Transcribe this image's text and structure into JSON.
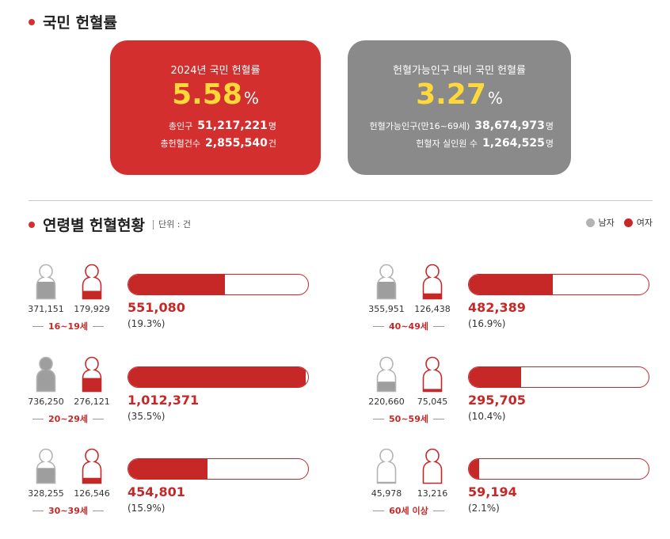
{
  "header": {
    "title": "국민 헌혈률"
  },
  "cards": [
    {
      "title": "2024년 국민 헌혈률",
      "rate": "5.58",
      "rate_unit": "%",
      "rows": [
        {
          "label": "총인구",
          "value": "51,217,221",
          "unit": "명"
        },
        {
          "label": "총헌혈건수",
          "value": "2,855,540",
          "unit": "건"
        }
      ],
      "color": "#d32f2f"
    },
    {
      "title": "헌혈가능인구 대비 국민 헌혈률",
      "rate": "3.27",
      "rate_unit": "%",
      "rows": [
        {
          "label": "헌혈가능인구(만16~69세)",
          "value": "38,674,973",
          "unit": "명"
        },
        {
          "label": "헌혈자 실인원 수",
          "value": "1,264,525",
          "unit": "명"
        }
      ],
      "color": "#8a8a8a"
    }
  ],
  "age_section": {
    "title": "연령별 헌혈현황",
    "unit": "단위 : 건"
  },
  "legend": {
    "male": "남자",
    "female": "여자",
    "male_color": "#b3b3b3",
    "female_color": "#c62828"
  },
  "chart_data": {
    "type": "bar",
    "title": "연령별 헌혈현황",
    "unit": "단위 : 건",
    "categories": [
      "16~19세",
      "20~29세",
      "30~39세",
      "40~49세",
      "50~59세",
      "60세 이상"
    ],
    "series": [
      {
        "name": "남자",
        "values": [
          371151,
          736250,
          328255,
          355951,
          220660,
          45978
        ]
      },
      {
        "name": "여자",
        "values": [
          179929,
          276121,
          126546,
          126438,
          75045,
          13216
        ]
      }
    ],
    "totals": [
      551080,
      1012371,
      454801,
      482389,
      295705,
      59194
    ],
    "shares_pct": [
      19.3,
      35.5,
      15.9,
      16.9,
      10.4,
      2.1
    ],
    "groups": [
      {
        "age": "16~19세",
        "male": "371,151",
        "female": "179,929",
        "total": "551,080",
        "share": "(19.3%)",
        "male_fill": 0.5,
        "female_fill": 0.25
      },
      {
        "age": "20~29세",
        "male": "736,250",
        "female": "276,121",
        "total": "1,012,371",
        "share": "(35.5%)",
        "male_fill": 1.0,
        "female_fill": 0.4
      },
      {
        "age": "30~39세",
        "male": "328,255",
        "female": "126,546",
        "total": "454,801",
        "share": "(15.9%)",
        "male_fill": 0.45,
        "female_fill": 0.18
      },
      {
        "age": "40~49세",
        "male": "355,951",
        "female": "126,438",
        "total": "482,389",
        "share": "(16.9%)",
        "male_fill": 0.5,
        "female_fill": 0.18
      },
      {
        "age": "50~59세",
        "male": "220,660",
        "female": "75,045",
        "total": "295,705",
        "share": "(10.4%)",
        "male_fill": 0.3,
        "female_fill": 0.1
      },
      {
        "age": "60세 이상",
        "male": "45,978",
        "female": "13,216",
        "total": "59,194",
        "share": "(2.1%)",
        "male_fill": 0.07,
        "female_fill": 0.03
      }
    ],
    "bar_max_pct": 36
  }
}
